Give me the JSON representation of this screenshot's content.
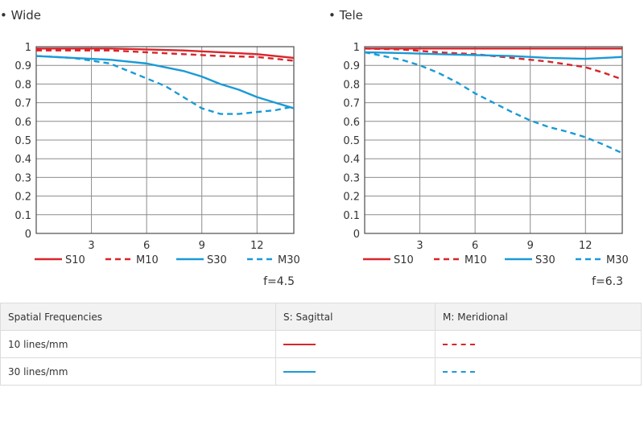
{
  "colors": {
    "red": "#d7262b",
    "blue": "#1a9ad6",
    "grid": "#4d4d4d"
  },
  "chart_data": [
    {
      "type": "line",
      "title": "• Wide",
      "xlabel": "",
      "ylabel": "",
      "xlim": [
        0,
        14
      ],
      "ylim": [
        0,
        1
      ],
      "xticks": [
        "3",
        "6",
        "9",
        "12"
      ],
      "xtick_values": [
        3,
        6,
        9,
        12
      ],
      "yticks": [
        "0",
        "0.1",
        "0.2",
        "0.3",
        "0.4",
        "0.5",
        "0.6",
        "0.7",
        "0.8",
        "0.9",
        "1"
      ],
      "ytick_values": [
        0,
        0.1,
        0.2,
        0.3,
        0.4,
        0.5,
        0.6,
        0.7,
        0.8,
        0.9,
        1
      ],
      "grid": true,
      "legend_position": "bottom",
      "annotation": "f=4.5",
      "series": [
        {
          "name": "S10",
          "color": "red",
          "dash": "solid",
          "x": [
            0,
            2,
            4,
            6,
            8,
            10,
            12,
            14
          ],
          "y": [
            0.99,
            0.99,
            0.99,
            0.985,
            0.98,
            0.97,
            0.96,
            0.94
          ]
        },
        {
          "name": "M10",
          "color": "red",
          "dash": "dashed",
          "x": [
            0,
            2,
            4,
            6,
            8,
            10,
            12,
            14
          ],
          "y": [
            0.98,
            0.98,
            0.98,
            0.97,
            0.96,
            0.95,
            0.945,
            0.925
          ]
        },
        {
          "name": "S30",
          "color": "blue",
          "dash": "solid",
          "x": [
            0,
            2,
            4,
            6,
            7,
            8,
            9,
            10,
            11,
            12,
            13,
            14
          ],
          "y": [
            0.95,
            0.94,
            0.93,
            0.91,
            0.89,
            0.87,
            0.84,
            0.8,
            0.77,
            0.73,
            0.7,
            0.67
          ]
        },
        {
          "name": "M30",
          "color": "blue",
          "dash": "dashed",
          "x": [
            0,
            2,
            4,
            5,
            6,
            7,
            8,
            9,
            10,
            11,
            12,
            13,
            14
          ],
          "y": [
            0.95,
            0.94,
            0.91,
            0.87,
            0.83,
            0.79,
            0.73,
            0.67,
            0.64,
            0.64,
            0.65,
            0.66,
            0.68
          ]
        }
      ]
    },
    {
      "type": "line",
      "title": "• Tele",
      "xlabel": "",
      "ylabel": "",
      "xlim": [
        0,
        14
      ],
      "ylim": [
        0,
        1
      ],
      "xticks": [
        "3",
        "6",
        "9",
        "12"
      ],
      "xtick_values": [
        3,
        6,
        9,
        12
      ],
      "yticks": [
        "0",
        "0.1",
        "0.2",
        "0.3",
        "0.4",
        "0.5",
        "0.6",
        "0.7",
        "0.8",
        "0.9",
        "1"
      ],
      "ytick_values": [
        0,
        0.1,
        0.2,
        0.3,
        0.4,
        0.5,
        0.6,
        0.7,
        0.8,
        0.9,
        1
      ],
      "grid": true,
      "legend_position": "bottom",
      "annotation": "f=6.3",
      "series": [
        {
          "name": "S10",
          "color": "red",
          "dash": "solid",
          "x": [
            0,
            2,
            4,
            6,
            8,
            10,
            12,
            14
          ],
          "y": [
            0.99,
            0.99,
            0.99,
            0.99,
            0.99,
            0.99,
            0.99,
            0.99
          ]
        },
        {
          "name": "M10",
          "color": "red",
          "dash": "dashed",
          "x": [
            0,
            2,
            4,
            6,
            8,
            10,
            12,
            13,
            14
          ],
          "y": [
            0.99,
            0.985,
            0.97,
            0.96,
            0.94,
            0.92,
            0.89,
            0.86,
            0.825
          ]
        },
        {
          "name": "S30",
          "color": "blue",
          "dash": "solid",
          "x": [
            0,
            2,
            4,
            6,
            8,
            10,
            12,
            14
          ],
          "y": [
            0.97,
            0.966,
            0.96,
            0.955,
            0.95,
            0.94,
            0.935,
            0.945
          ]
        },
        {
          "name": "M30",
          "color": "blue",
          "dash": "dashed",
          "x": [
            0,
            1,
            2,
            3,
            4,
            5,
            6,
            7,
            8,
            9,
            10,
            11,
            12,
            13,
            14
          ],
          "y": [
            0.97,
            0.95,
            0.93,
            0.9,
            0.86,
            0.81,
            0.75,
            0.7,
            0.65,
            0.605,
            0.57,
            0.545,
            0.515,
            0.475,
            0.43
          ]
        }
      ]
    }
  ],
  "legend_table": {
    "headers": [
      "Spatial Frequencies",
      "S: Sagittal",
      "M: Meridional"
    ],
    "rows": [
      {
        "label": "10 lines/mm",
        "sagittal_color": "red",
        "meridional_color": "red"
      },
      {
        "label": "30 lines/mm",
        "sagittal_color": "blue",
        "meridional_color": "blue"
      }
    ]
  }
}
